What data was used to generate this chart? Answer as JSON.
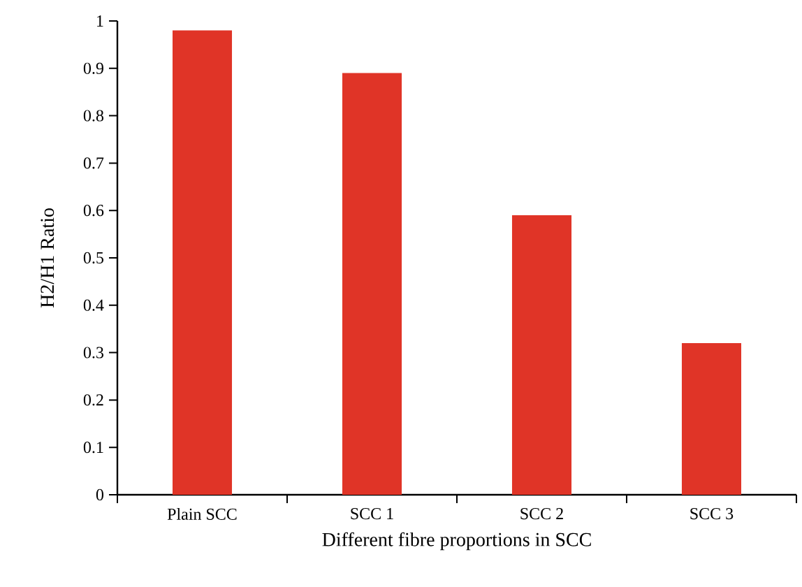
{
  "chart_data": {
    "type": "bar",
    "xlabel": "Different fibre proportions in SCC",
    "ylabel": "H2/H1 Ratio",
    "categories": [
      "Plain SCC",
      "SCC 1",
      "SCC 2",
      "SCC 3"
    ],
    "values": [
      0.98,
      0.89,
      0.59,
      0.32
    ],
    "color": "#e03427",
    "ylim": [
      0,
      1
    ],
    "yticks": [
      0,
      0.1,
      0.2,
      0.3,
      0.4,
      0.5,
      0.6,
      0.7,
      0.8,
      0.9,
      1
    ],
    "grid": false
  }
}
